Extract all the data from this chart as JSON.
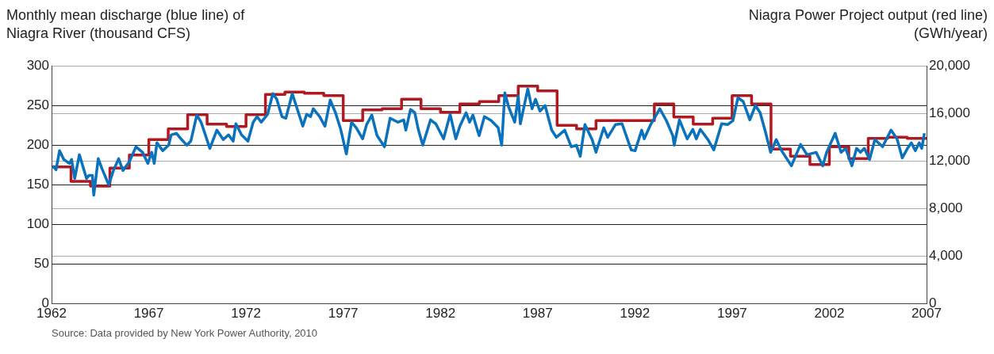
{
  "chart_data": {
    "type": "line",
    "ylabel": "Monthly mean discharge (blue line) of Niagra River (thousand CFS)",
    "y2label": "Niagra Power Project output (red line) (GWh/year)",
    "annotations": [
      "Source: Data provided by New York Power Authority, 2010"
    ],
    "xlim": [
      1962,
      2007
    ],
    "xticks": [
      1962,
      1967,
      1972,
      1977,
      1982,
      1987,
      1992,
      1997,
      2002,
      2007
    ],
    "ylim": [
      0,
      300
    ],
    "yticks": [
      0,
      50,
      100,
      150,
      200,
      250,
      300
    ],
    "y2lim": [
      0,
      20000
    ],
    "y2ticks": [
      {
        "value": 0,
        "label": "0"
      },
      {
        "value": 4000,
        "label": "4,000"
      },
      {
        "value": 8000,
        "label": "8,000"
      },
      {
        "value": 12000,
        "label": "12,000"
      },
      {
        "value": 16000,
        "label": "16,000"
      },
      {
        "value": 20000,
        "label": "20,000"
      }
    ],
    "grid": "y",
    "series": [
      {
        "type": "line",
        "color": "#0a72bd",
        "x": [
          1962.05,
          1962.23,
          1962.41,
          1962.63,
          1962.92,
          1963.03,
          1963.19,
          1963.43,
          1963.8,
          1963.93,
          1964.1,
          1964.17,
          1964.4,
          1964.6,
          1964.94,
          1965.18,
          1965.45,
          1965.67,
          1966.0,
          1966.34,
          1966.68,
          1966.95,
          1967.15,
          1967.28,
          1967.42,
          1967.72,
          1968.02,
          1968.15,
          1968.42,
          1968.69,
          1968.96,
          1969.16,
          1969.47,
          1969.69,
          1970.14,
          1970.5,
          1970.83,
          1971.1,
          1971.34,
          1971.48,
          1971.77,
          1972.1,
          1972.37,
          1972.57,
          1972.78,
          1973.11,
          1973.38,
          1973.58,
          1973.85,
          1974.05,
          1974.38,
          1974.92,
          1975.12,
          1975.32,
          1975.46,
          1975.79,
          1976.06,
          1976.33,
          1976.6,
          1976.87,
          1977.16,
          1977.43,
          1977.67,
          1978.0,
          1978.2,
          1978.47,
          1978.74,
          1979.12,
          1979.41,
          1979.81,
          1980.11,
          1980.22,
          1980.46,
          1980.68,
          1980.86,
          1981.09,
          1981.49,
          1981.76,
          1982.16,
          1982.5,
          1982.79,
          1983.0,
          1983.32,
          1983.5,
          1983.67,
          1983.9,
          1983.99,
          1984.26,
          1984.61,
          1984.97,
          1985.15,
          1985.31,
          1985.51,
          1985.82,
          1986.0,
          1986.11,
          1986.49,
          1986.71,
          1986.89,
          1987.12,
          1987.38,
          1987.72,
          1987.96,
          1988.39,
          1988.73,
          1988.99,
          1989.19,
          1989.43,
          1989.8,
          1990.0,
          1990.4,
          1990.6,
          1991.0,
          1991.34,
          1991.81,
          1992.01,
          1992.35,
          1992.48,
          1992.81,
          1993.28,
          1993.62,
          1993.95,
          1994.02,
          1994.29,
          1994.69,
          1994.98,
          1995.16,
          1995.36,
          1995.76,
          1996.06,
          1996.46,
          1996.77,
          1997.04,
          1997.3,
          1997.57,
          1997.91,
          1998.2,
          1998.44,
          1998.71,
          1998.98,
          1999.27,
          1999.52,
          2000.05,
          2000.52,
          2000.85,
          2001.32,
          2001.66,
          2001.86,
          2002.3,
          2002.6,
          2002.84,
          2003.16,
          2003.4,
          2003.6,
          2003.8,
          2004.07,
          2004.34,
          2004.74,
          2005.17,
          2005.48,
          2005.75,
          2006.02,
          2006.22,
          2006.42,
          2006.62,
          2006.75,
          2006.89
        ],
        "values": [
          174,
          169,
          193,
          182,
          177,
          182,
          158,
          188,
          158,
          162,
          162,
          137,
          183,
          170,
          150,
          168,
          183,
          168,
          179,
          198,
          191,
          177,
          191,
          177,
          203,
          193,
          200,
          213,
          215,
          207,
          200,
          205,
          238,
          229,
          196,
          219,
          207,
          213,
          205,
          227,
          213,
          205,
          229,
          236,
          229,
          239,
          265,
          258,
          236,
          234,
          265,
          224,
          239,
          236,
          246,
          236,
          224,
          257,
          241,
          220,
          189,
          229,
          222,
          208,
          226,
          238,
          212,
          198,
          234,
          229,
          232,
          219,
          245,
          241,
          220,
          200,
          232,
          227,
          208,
          239,
          208,
          224,
          241,
          229,
          238,
          219,
          212,
          236,
          231,
          222,
          200,
          266,
          248,
          229,
          262,
          227,
          271,
          246,
          258,
          243,
          250,
          219,
          210,
          219,
          198,
          200,
          186,
          226,
          207,
          191,
          222,
          210,
          226,
          227,
          194,
          193,
          219,
          208,
          226,
          246,
          231,
          212,
          200,
          232,
          208,
          220,
          208,
          220,
          207,
          194,
          227,
          226,
          231,
          260,
          255,
          232,
          250,
          241,
          217,
          191,
          207,
          194,
          174,
          201,
          188,
          191,
          174,
          191,
          215,
          191,
          196,
          174,
          196,
          191,
          196,
          182,
          207,
          198,
          219,
          208,
          184,
          196,
          203,
          193,
          203,
          196,
          215
        ]
      },
      {
        "type": "step",
        "axis": "y2",
        "color": "#b0191f",
        "x": [
          1962,
          1963,
          1964,
          1965,
          1966,
          1967,
          1968,
          1969,
          1970,
          1971,
          1972,
          1973,
          1974,
          1975,
          1976,
          1977,
          1978,
          1979,
          1980,
          1981,
          1982,
          1983,
          1984,
          1985,
          1986,
          1987,
          1988,
          1989,
          1990,
          1993,
          1994,
          1995,
          1996,
          1997,
          1998,
          1999,
          2000,
          2001,
          2002,
          2003,
          2004,
          2005,
          2006,
          2007
        ],
        "values": [
          11500,
          10300,
          9900,
          11400,
          12500,
          13800,
          14700,
          15900,
          15100,
          14900,
          15900,
          17600,
          17800,
          17700,
          17500,
          15400,
          16300,
          16400,
          17200,
          16400,
          16100,
          16800,
          17000,
          17500,
          18300,
          17900,
          15000,
          14700,
          15400,
          16800,
          15700,
          15100,
          15600,
          17500,
          16800,
          13000,
          12400,
          11700,
          13200,
          12200,
          13900,
          14000,
          13900,
          13900
        ]
      }
    ]
  }
}
